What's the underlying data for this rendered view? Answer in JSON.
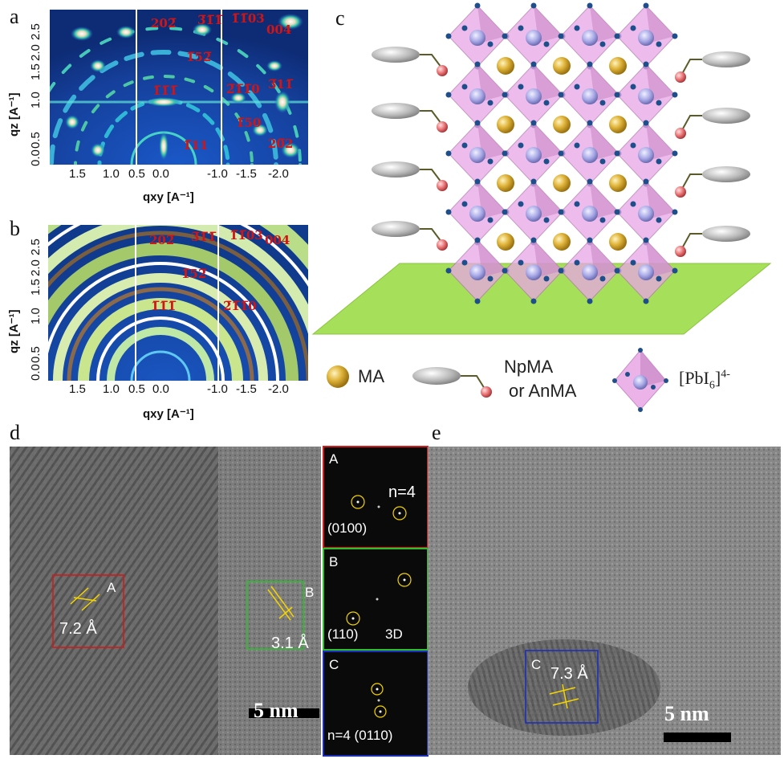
{
  "panels": {
    "a": {
      "label": "a",
      "reflections": [
        "202̅",
        "3̅1̅1̅",
        "1̅1̅03",
        "004",
        "1̅52̅",
        "1̅1̅1̅",
        "2̅1̅1̅0",
        "3̅11̅",
        "1̅50",
        "1̅11",
        "20̅2"
      ],
      "y_ticks": [
        "0.0",
        "0.5",
        "1.0",
        "1.5",
        "2.0",
        "2.5"
      ],
      "x_ticks": [
        "1.5",
        "1.0",
        "0.5",
        "0.0",
        "-1.0",
        "-1.5",
        "-2.0"
      ],
      "ylabel": "qz [A⁻¹]",
      "xlabel": "qxy [A⁻¹]"
    },
    "b": {
      "label": "b",
      "reflections": [
        "202̅",
        "3̅1̅1̅",
        "1̅1̅03",
        "004",
        "1̅52̅",
        "1̅1̅1̅",
        "2̅1̅1̅0"
      ],
      "y_ticks": [
        "0.0",
        "0.5",
        "1.0",
        "1.5",
        "2.0",
        "2.5"
      ],
      "x_ticks": [
        "1.5",
        "1.0",
        "0.5",
        "0.0",
        "-1.0",
        "-1.5",
        "-2.0"
      ],
      "ylabel": "qz [A⁻¹]",
      "xlabel": "qxy [A⁻¹]"
    },
    "c": {
      "label": "c",
      "legend": {
        "ma": "MA",
        "spacer_line1": "NpMA",
        "spacer_line2": "or AnMA",
        "octahedron": "[PbI6]4-"
      }
    },
    "d": {
      "label": "d",
      "region_a": {
        "letter": "A",
        "spacing": "7.2 Å"
      },
      "region_b": {
        "letter": "B",
        "spacing": "3.1 Å"
      },
      "scale_bar": "5 nm",
      "fft_a": {
        "letter": "A",
        "index": "(0100)",
        "n": "n=4"
      },
      "fft_b": {
        "letter": "B",
        "index": "(110)",
        "phase": "3D"
      },
      "fft_c": {
        "letter": "C",
        "index": "n=4 (0110)"
      }
    },
    "e": {
      "label": "e",
      "region_c": {
        "letter": "C",
        "spacing": "7.3 Å"
      },
      "scale_bar": "5 nm"
    }
  },
  "colors": {
    "reflection_text": "#d21414",
    "octahedron": "#e9a6e6",
    "substrate": "#a6e05a",
    "ma_ion": "#e0b43a",
    "box_a": "#d01c1c",
    "box_b": "#2dbd2d",
    "box_c": "#1d2fb8"
  }
}
